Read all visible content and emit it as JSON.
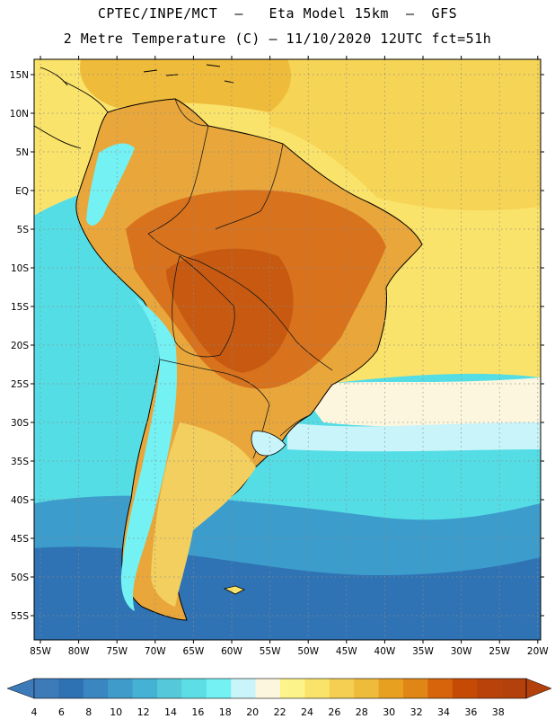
{
  "title": {
    "line1": "CPTEC/INPE/MCT  –   Eta Model 15km  –  GFS",
    "line2": "2 Metre Temperature (C) – 11/10/2020 12UTC fct=51h"
  },
  "axes": {
    "lat_labels": [
      "15N",
      "10N",
      "5N",
      "EQ",
      "5S",
      "10S",
      "15S",
      "20S",
      "25S",
      "30S",
      "35S",
      "40S",
      "45S",
      "50S",
      "55S"
    ],
    "lon_labels": [
      "85W",
      "80W",
      "75W",
      "70W",
      "65W",
      "60W",
      "55W",
      "50W",
      "45W",
      "40W",
      "35W",
      "30W",
      "25W",
      "20W"
    ]
  },
  "colorbar": {
    "labels": [
      "4",
      "6",
      "8",
      "10",
      "12",
      "14",
      "16",
      "18",
      "20",
      "22",
      "24",
      "26",
      "28",
      "30",
      "32",
      "34",
      "36",
      "38"
    ],
    "colors": [
      "#3d7ab8",
      "#2f72b4",
      "#3a86c0",
      "#3f9bc9",
      "#45b1d4",
      "#55c8da",
      "#5ddee6",
      "#74f1f3",
      "#c9f4f9",
      "#fdf6de",
      "#fcf38a",
      "#fae36a",
      "#f4cf52",
      "#eebb3a",
      "#e7a01f",
      "#df8616",
      "#d7630b",
      "#c54b05",
      "#b8420a",
      "#b3410b"
    ],
    "low_arrow_color": "#3d7ab8",
    "high_arrow_color": "#b3410b"
  },
  "regions": {
    "background_ocean": "#55dde5",
    "south_ocean": "#3c9ccc",
    "far_south_ocean": "#2f73b4",
    "north_warm": "#fae36a",
    "tropical_atlantic": "#f6d456",
    "caribbean": "#efbb3a",
    "land_warm": "#e9a63a",
    "land_hot": "#d8721c",
    "land_hottest": "#c75a10",
    "andes_cold": "#74f1f3",
    "patagonia": "#f2cf5e",
    "cool_sea": "#c9f4f9",
    "mild_sea": "#fdf6de"
  }
}
